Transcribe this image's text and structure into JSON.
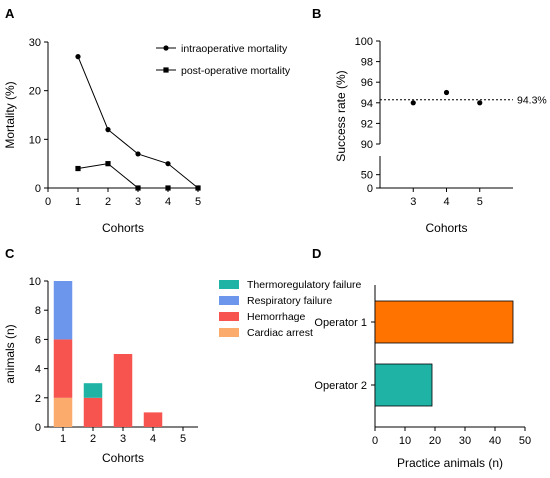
{
  "colors": {
    "axis": "#000000",
    "thermoregulatory": "#1fb3a6",
    "respiratory": "#6b96ec",
    "hemorrhage": "#f8544f",
    "cardiac": "#fbab6b",
    "operator1": "#ff7300",
    "operator2": "#1fb3a6"
  },
  "chart_data": [
    {
      "panel": "A",
      "type": "line",
      "xlabel": "Cohorts",
      "ylabel": "Mortality (%)",
      "xlim": [
        0,
        5
      ],
      "ylim": [
        0,
        30
      ],
      "xticks": [
        "0",
        "1",
        "2",
        "3",
        "4",
        "5"
      ],
      "yticks": [
        "0",
        "10",
        "20",
        "30"
      ],
      "series": [
        {
          "name": "intraoperative mortality",
          "marker": "circle",
          "x": [
            1,
            2,
            3,
            4,
            5
          ],
          "y": [
            27,
            12,
            7,
            5,
            0
          ]
        },
        {
          "name": "post-operative mortality",
          "marker": "square",
          "x": [
            1,
            2,
            3,
            4,
            5
          ],
          "y": [
            4,
            5,
            0,
            0,
            0
          ]
        }
      ]
    },
    {
      "panel": "B",
      "type": "scatter",
      "xlabel": "Cohorts",
      "ylabel": "Success rate (%)",
      "categories": [
        "3",
        "4",
        "5"
      ],
      "values": [
        94,
        95,
        94
      ],
      "yticks_upper": [
        "90",
        "92",
        "94",
        "96",
        "98",
        "100"
      ],
      "yticks_lower": [
        "0",
        "50"
      ],
      "ylim_upper": [
        90,
        100
      ],
      "ylim_lower": [
        0,
        75
      ],
      "reference_line": {
        "value": 94.3,
        "label": "94.3%"
      }
    },
    {
      "panel": "C",
      "type": "bar",
      "stacked": true,
      "xlabel": "Cohorts",
      "ylabel": "animals (n)",
      "categories": [
        "1",
        "2",
        "3",
        "4",
        "5"
      ],
      "ylim": [
        0,
        10
      ],
      "yticks": [
        "0",
        "2",
        "4",
        "6",
        "8",
        "10"
      ],
      "series": [
        {
          "name": "Cardiac arrest",
          "color_key": "cardiac",
          "values": [
            2,
            0,
            0,
            0,
            0
          ]
        },
        {
          "name": "Hemorrhage",
          "color_key": "hemorrhage",
          "values": [
            4,
            2,
            5,
            1,
            0
          ]
        },
        {
          "name": "Respiratory failure",
          "color_key": "respiratory",
          "values": [
            4,
            0,
            0,
            0,
            0
          ]
        },
        {
          "name": "Thermoregulatory failure",
          "color_key": "thermoregulatory",
          "values": [
            0,
            1,
            0,
            0,
            0
          ]
        }
      ],
      "legend_order": [
        "Thermoregulatory failure",
        "Respiratory failure",
        "Hemorrhage",
        "Cardiac arrest"
      ]
    },
    {
      "panel": "D",
      "type": "bar",
      "orientation": "horizontal",
      "xlabel": "Practice animals (n)",
      "categories": [
        "Operator 1",
        "Operator 2"
      ],
      "values": [
        46,
        19
      ],
      "xlim": [
        0,
        50
      ],
      "xticks": [
        "0",
        "10",
        "20",
        "30",
        "40",
        "50"
      ]
    }
  ]
}
